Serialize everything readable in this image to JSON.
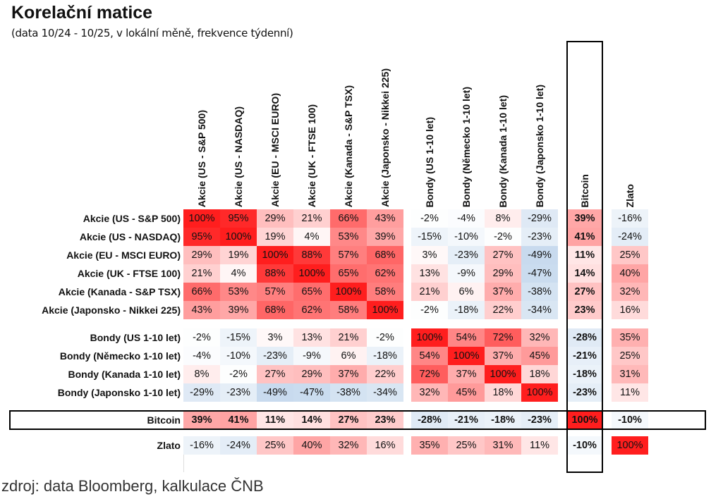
{
  "chart_data": {
    "type": "heatmap",
    "title": "Korelační matice",
    "subtitle": "(data 10/24 - 10/25, v lokální měně, frekvence týdenní)",
    "source": "zdroj: data Bloomberg, kalkulace ČNB",
    "value_format": "percent",
    "labels": [
      "Akcie (US - S&P 500)",
      "Akcie (US - NASDAQ)",
      "Akcie (EU - MSCI EURO)",
      "Akcie (UK - FTSE 100)",
      "Akcie (Kanada - S&P TSX)",
      "Akcie (Japonsko  - Nikkei 225)",
      "Bondy (US 1-10 let)",
      "Bondy (Německo 1-10 let)",
      "Bondy (Kanada 1-10 let)",
      "Bondy (Japonsko 1-10 let)",
      "Bitcoin",
      "Zlato"
    ],
    "highlighted": "Bitcoin",
    "matrix": [
      [
        100,
        95,
        29,
        21,
        66,
        43,
        -2,
        -4,
        8,
        -29,
        39,
        -16
      ],
      [
        95,
        100,
        19,
        4,
        53,
        39,
        -15,
        -10,
        -2,
        -23,
        41,
        -24
      ],
      [
        29,
        19,
        100,
        88,
        57,
        68,
        3,
        -23,
        27,
        -49,
        11,
        25
      ],
      [
        21,
        4,
        88,
        100,
        65,
        62,
        13,
        -9,
        29,
        -47,
        14,
        40
      ],
      [
        66,
        53,
        57,
        65,
        100,
        58,
        21,
        6,
        37,
        -38,
        27,
        32
      ],
      [
        43,
        39,
        68,
        62,
        58,
        100,
        -2,
        -18,
        22,
        -34,
        23,
        16
      ],
      [
        -2,
        -15,
        3,
        13,
        21,
        -2,
        100,
        54,
        72,
        32,
        -28,
        35
      ],
      [
        -4,
        -10,
        -23,
        -9,
        6,
        -18,
        54,
        100,
        37,
        45,
        -21,
        25
      ],
      [
        8,
        -2,
        27,
        29,
        37,
        22,
        72,
        37,
        100,
        18,
        -18,
        31
      ],
      [
        -29,
        -23,
        -49,
        -47,
        -38,
        -34,
        32,
        45,
        18,
        100,
        -23,
        11
      ],
      [
        39,
        41,
        11,
        14,
        27,
        23,
        -28,
        -21,
        -18,
        -23,
        100,
        -10
      ],
      [
        -16,
        -24,
        25,
        40,
        32,
        16,
        35,
        25,
        31,
        11,
        -10,
        100
      ]
    ],
    "colors": {
      "positive": "#ff1e1e",
      "negative": "#8fb4dc",
      "neutral": "#ffffff"
    }
  }
}
